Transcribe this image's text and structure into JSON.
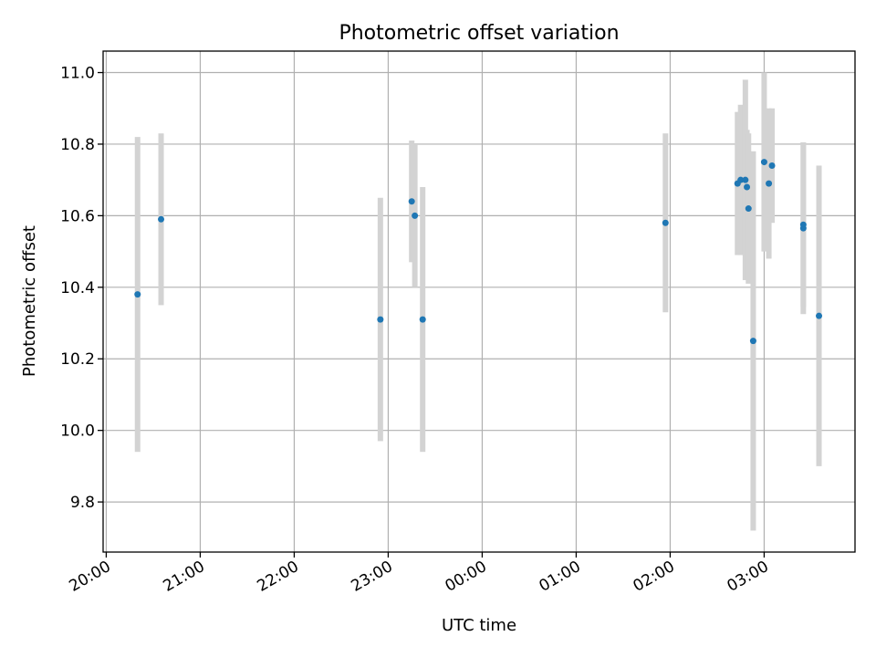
{
  "chart_data": {
    "type": "scatter",
    "title": "Photometric offset variation",
    "xlabel": "UTC time",
    "ylabel": "Photometric offset",
    "x_ticks": [
      "20:00",
      "21:00",
      "22:00",
      "23:00",
      "00:00",
      "01:00",
      "02:00",
      "03:00"
    ],
    "xlim": [
      "19:58",
      "03:58"
    ],
    "y_ticks": [
      "9.8",
      "10.0",
      "10.2",
      "10.4",
      "10.6",
      "10.8",
      "11.0"
    ],
    "ylim": [
      9.66,
      11.06
    ],
    "grid": true,
    "colors": {
      "point": "#1f77b4",
      "errorbar": "#d3d3d3"
    },
    "points": [
      {
        "x": "20:20",
        "y": 10.38,
        "err": 0.44
      },
      {
        "x": "20:35",
        "y": 10.59,
        "err": 0.24
      },
      {
        "x": "22:55",
        "y": 10.31,
        "err": 0.34
      },
      {
        "x": "23:15",
        "y": 10.64,
        "err": 0.17
      },
      {
        "x": "23:17",
        "y": 10.6,
        "err": 0.2
      },
      {
        "x": "23:22",
        "y": 10.31,
        "err": 0.37
      },
      {
        "x": "01:57",
        "y": 10.58,
        "err": 0.25
      },
      {
        "x": "02:43",
        "y": 10.69,
        "err": 0.2
      },
      {
        "x": "02:45",
        "y": 10.7,
        "err": 0.21
      },
      {
        "x": "02:48",
        "y": 10.7,
        "err": 0.28
      },
      {
        "x": "02:49",
        "y": 10.68,
        "err": 0.16
      },
      {
        "x": "02:50",
        "y": 10.62,
        "err": 0.21
      },
      {
        "x": "02:53",
        "y": 10.25,
        "err": 0.53
      },
      {
        "x": "03:00",
        "y": 10.75,
        "err": 0.25
      },
      {
        "x": "03:03",
        "y": 10.69,
        "err": 0.21
      },
      {
        "x": "03:05",
        "y": 10.74,
        "err": 0.16
      },
      {
        "x": "03:25",
        "y": 10.575,
        "err": 0.23
      },
      {
        "x": "03:25",
        "y": 10.565,
        "err": 0.24
      },
      {
        "x": "03:35",
        "y": 10.32,
        "err": 0.42
      }
    ]
  }
}
